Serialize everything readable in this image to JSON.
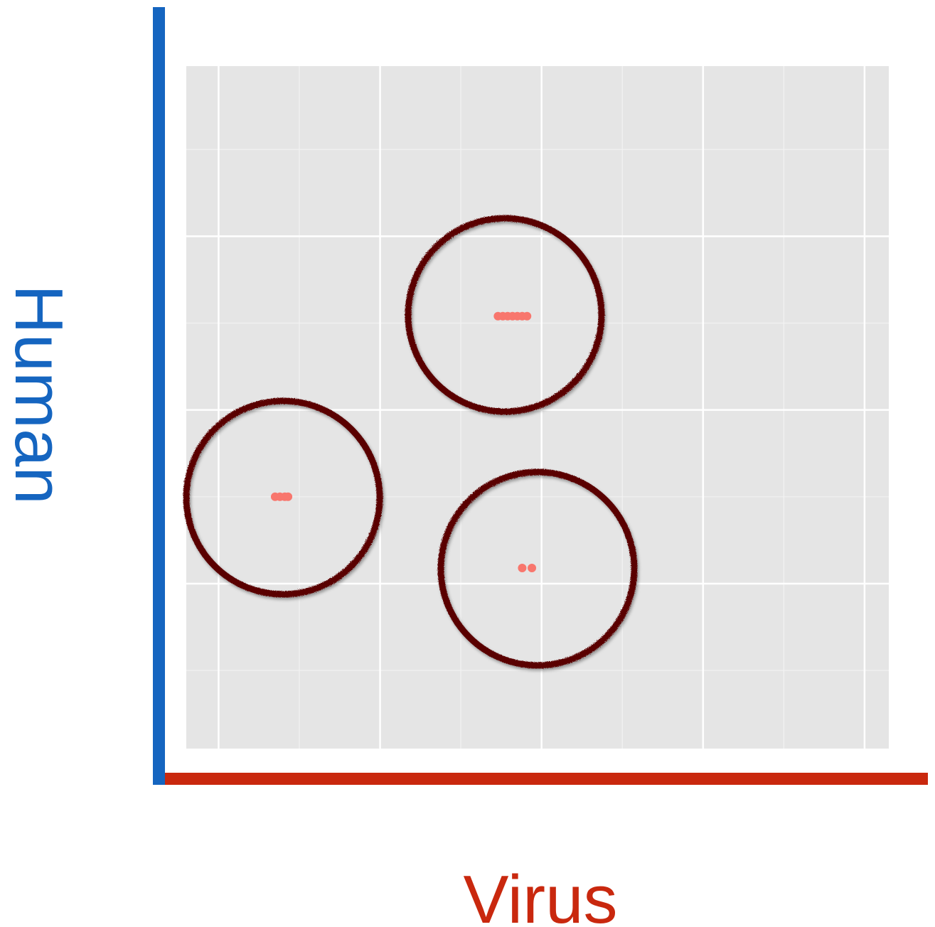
{
  "chart_data": {
    "type": "scatter",
    "x_label": "Virus",
    "y_label": "Human",
    "x_label_color": "#c9280e",
    "y_label_color": "#1565c0",
    "series": [
      {
        "color": "#f8766d",
        "x": [
          1.73,
          1.76,
          1.79,
          1.82,
          1.85,
          1.88,
          1.91,
          0.35,
          0.38,
          0.41,
          0.43,
          1.88,
          1.94
        ],
        "y": [
          2.54,
          2.54,
          2.54,
          2.54,
          2.54,
          2.54,
          2.54,
          1.5,
          1.5,
          1.5,
          1.5,
          1.09,
          1.09
        ]
      }
    ],
    "xlim": [
      -0.2,
      4.15
    ],
    "ylim": [
      0.05,
      3.98
    ],
    "xticks": [
      0,
      1,
      2,
      3,
      4
    ],
    "yticks": [
      1,
      2,
      3
    ],
    "minor_xticks": [
      0.5,
      1.5,
      2.5,
      3.5
    ],
    "minor_yticks": [
      0.5,
      1.5,
      2.5,
      3.5
    ],
    "grid": true,
    "tick_labels": false
  }
}
